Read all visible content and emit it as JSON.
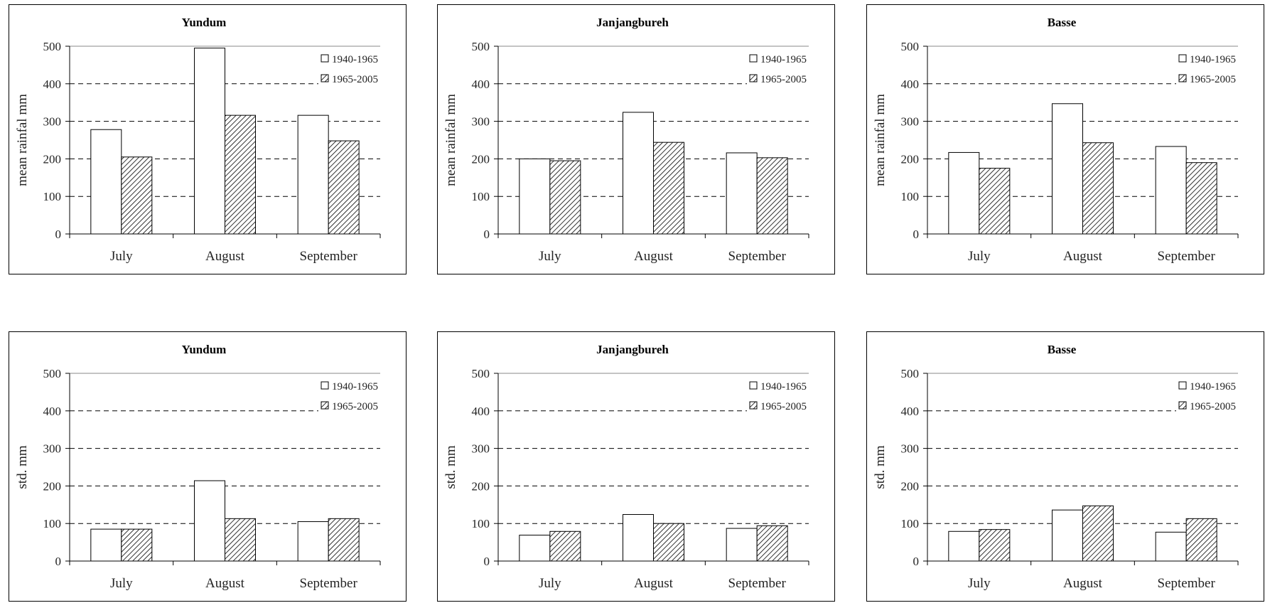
{
  "chart_data": [
    {
      "type": "bar",
      "title": "Yundum",
      "ylabel": "mean rainfal mm",
      "xlabel": "",
      "ylim": [
        0,
        500
      ],
      "yticks": [
        0,
        100,
        200,
        300,
        400,
        500
      ],
      "categories": [
        "July",
        "August",
        "September"
      ],
      "series": [
        {
          "name": "1940-1965",
          "values": [
            278,
            495,
            316
          ]
        },
        {
          "name": "1965-2005",
          "values": [
            205,
            316,
            248
          ]
        }
      ],
      "grid": "dashed horizontal",
      "legend": "top-right"
    },
    {
      "type": "bar",
      "title": "Janjangbureh",
      "ylabel": "mean rainfal mm",
      "xlabel": "",
      "ylim": [
        0,
        500
      ],
      "yticks": [
        0,
        100,
        200,
        300,
        400,
        500
      ],
      "categories": [
        "July",
        "August",
        "September"
      ],
      "series": [
        {
          "name": "1940-1965",
          "values": [
            200,
            324,
            216
          ]
        },
        {
          "name": "1965-2005",
          "values": [
            195,
            244,
            203
          ]
        }
      ],
      "grid": "dashed horizontal",
      "legend": "top-right"
    },
    {
      "type": "bar",
      "title": "Basse",
      "ylabel": "mean rainfal mm",
      "xlabel": "",
      "ylim": [
        0,
        500
      ],
      "yticks": [
        0,
        100,
        200,
        300,
        400,
        500
      ],
      "categories": [
        "July",
        "August",
        "September"
      ],
      "series": [
        {
          "name": "1940-1965",
          "values": [
            217,
            347,
            233
          ]
        },
        {
          "name": "1965-2005",
          "values": [
            175,
            243,
            190
          ]
        }
      ],
      "grid": "dashed horizontal",
      "legend": "top-right"
    },
    {
      "type": "bar",
      "title": "Yundum",
      "ylabel": "std. mm",
      "xlabel": "",
      "ylim": [
        0,
        500
      ],
      "yticks": [
        0,
        100,
        200,
        300,
        400,
        500
      ],
      "categories": [
        "July",
        "August",
        "September"
      ],
      "series": [
        {
          "name": "1940-1965",
          "values": [
            85,
            214,
            105
          ]
        },
        {
          "name": "1965-2005",
          "values": [
            85,
            113,
            113
          ]
        }
      ],
      "grid": "dashed horizontal",
      "legend": "top-right"
    },
    {
      "type": "bar",
      "title": "Janjangbureh",
      "ylabel": "std. mm",
      "xlabel": "",
      "ylim": [
        0,
        500
      ],
      "yticks": [
        0,
        100,
        200,
        300,
        400,
        500
      ],
      "categories": [
        "July",
        "August",
        "September"
      ],
      "series": [
        {
          "name": "1940-1965",
          "values": [
            69,
            124,
            87
          ]
        },
        {
          "name": "1965-2005",
          "values": [
            79,
            100,
            94
          ]
        }
      ],
      "grid": "dashed horizontal",
      "legend": "top-right"
    },
    {
      "type": "bar",
      "title": "Basse",
      "ylabel": "std. mm",
      "xlabel": "",
      "ylim": [
        0,
        500
      ],
      "yticks": [
        0,
        100,
        200,
        300,
        400,
        500
      ],
      "categories": [
        "July",
        "August",
        "September"
      ],
      "series": [
        {
          "name": "1940-1965",
          "values": [
            79,
            136,
            77
          ]
        },
        {
          "name": "1965-2005",
          "values": [
            84,
            147,
            113
          ]
        }
      ],
      "grid": "dashed horizontal",
      "legend": "top-right"
    }
  ],
  "colors": {
    "series_1_fill": "#ffffff",
    "series_2_fill": "hatched",
    "stroke": "#000000",
    "grid": "#000000"
  }
}
